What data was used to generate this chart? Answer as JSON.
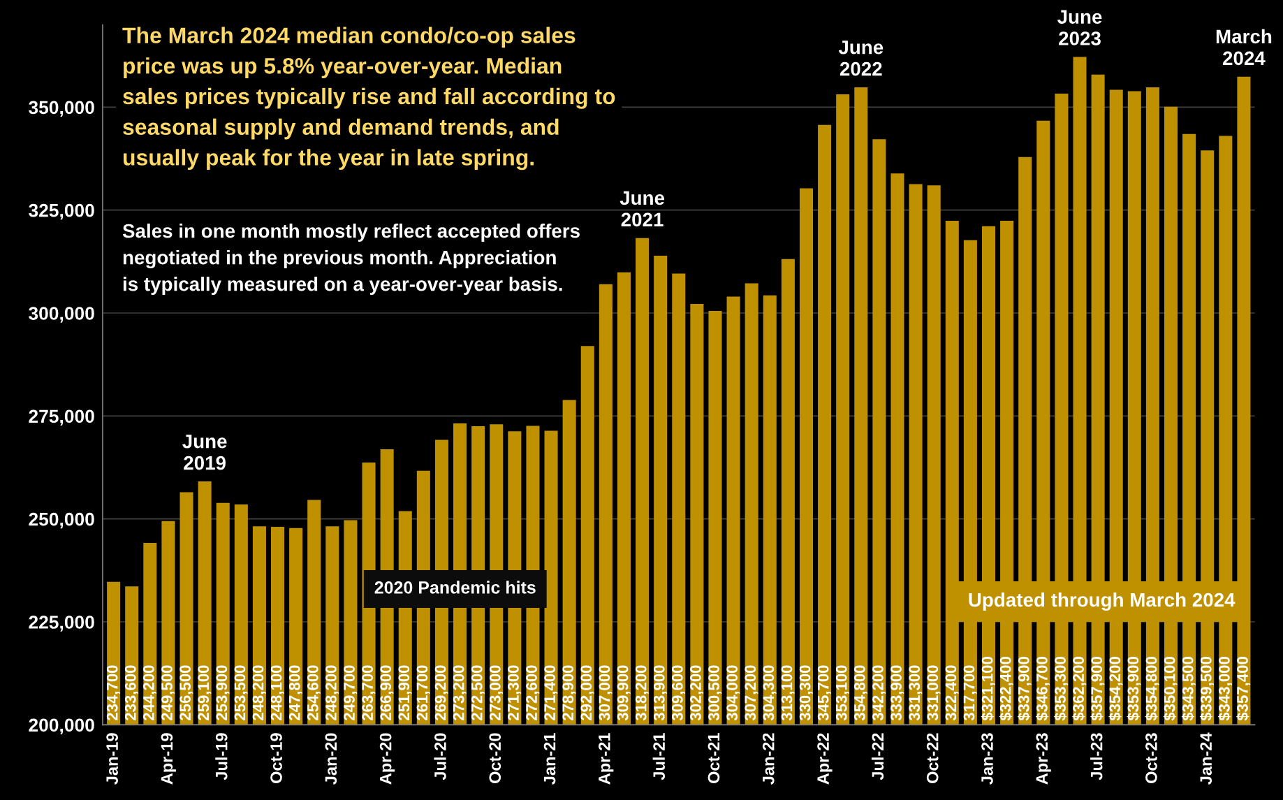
{
  "chart_data": {
    "type": "bar",
    "categories": [
      "Jan-19",
      null,
      null,
      "Apr-19",
      null,
      null,
      "Jul-19",
      null,
      null,
      "Oct-19",
      null,
      null,
      "Jan-20",
      null,
      null,
      "Apr-20",
      null,
      null,
      "Jul-20",
      null,
      null,
      "Oct-20",
      null,
      null,
      "Jan-21",
      null,
      null,
      "Apr-21",
      null,
      null,
      "Jul-21",
      null,
      null,
      "Oct-21",
      null,
      null,
      "Jan-22",
      null,
      null,
      "Apr-22",
      null,
      null,
      "Jul-22",
      null,
      null,
      "Oct-22",
      null,
      null,
      "Jan-23",
      null,
      null,
      "Apr-23",
      null,
      null,
      "Jul-23",
      null,
      null,
      "Oct-23",
      null,
      null,
      "Jan-24",
      null,
      null
    ],
    "values": [
      234700,
      233600,
      244200,
      249500,
      256500,
      259100,
      253900,
      253500,
      248200,
      248100,
      247800,
      254600,
      248200,
      249700,
      263700,
      266900,
      251900,
      261700,
      269200,
      273200,
      272500,
      273000,
      271300,
      272600,
      271400,
      278900,
      292000,
      307000,
      309900,
      318200,
      313900,
      309600,
      302200,
      300500,
      304000,
      307200,
      304300,
      313100,
      330300,
      345700,
      353100,
      354800,
      342200,
      333900,
      331300,
      331000,
      322400,
      317700,
      321100,
      322400,
      337900,
      346700,
      353300,
      362200,
      357900,
      354200,
      353900,
      354800,
      350100,
      343500,
      339500,
      343000,
      357400
    ],
    "value_labels": [
      "234,700",
      "233,600",
      "244,200",
      "249,500",
      "256,500",
      "259,100",
      "253,900",
      "253,500",
      "248,200",
      "248,100",
      "247,800",
      "254,600",
      "248,200",
      "249,700",
      "263,700",
      "266,900",
      "251,900",
      "261,700",
      "269,200",
      "273,200",
      "272,500",
      "273,000",
      "271,300",
      "272,600",
      "271,400",
      "278,900",
      "292,000",
      "307,000",
      "309,900",
      "318,200",
      "313,900",
      "309,600",
      "302,200",
      "300,500",
      "304,000",
      "307,200",
      "304,300",
      "313,100",
      "330,300",
      "345,700",
      "353,100",
      "354,800",
      "342,200",
      "333,900",
      "331,300",
      "331,000",
      "322,400",
      "317,700",
      "$321,100",
      "$322,400",
      "$337,900",
      "$346,700",
      "$353,300",
      "$362,200",
      "$357,900",
      "$354,200",
      "$353,900",
      "$354,800",
      "$350,100",
      "$343,500",
      "$339,500",
      "$343,000",
      "$357,400"
    ],
    "color": "#bf9000",
    "ylim": [
      200000,
      370000
    ],
    "yticks": [
      {
        "value": 200000,
        "label": "200,000"
      },
      {
        "value": 225000,
        "label": "225,000"
      },
      {
        "value": 250000,
        "label": "250,000"
      },
      {
        "value": 275000,
        "label": "275,000"
      },
      {
        "value": 300000,
        "label": "300,000"
      },
      {
        "value": 325000,
        "label": "325,000"
      },
      {
        "value": 350000,
        "label": "350,000"
      }
    ],
    "grid": "y",
    "annotations": [
      "The March 2024 median condo/co-op sales\nprice was up 5.8% year-over-year. Median\nsales prices typically rise and fall according to\nseasonal supply and demand trends, and\nusually peak for the year in late spring.",
      "Sales in one month mostly reflect accepted offers\nnegotiated in the previous month. Appreciation\nis typically measured on a year-over-year basis.",
      "June\n2019",
      "June\n2021",
      "June\n2022",
      "June\n2023",
      "March\n2024",
      "2020 Pandemic hits",
      "Updated through March 2024"
    ]
  }
}
